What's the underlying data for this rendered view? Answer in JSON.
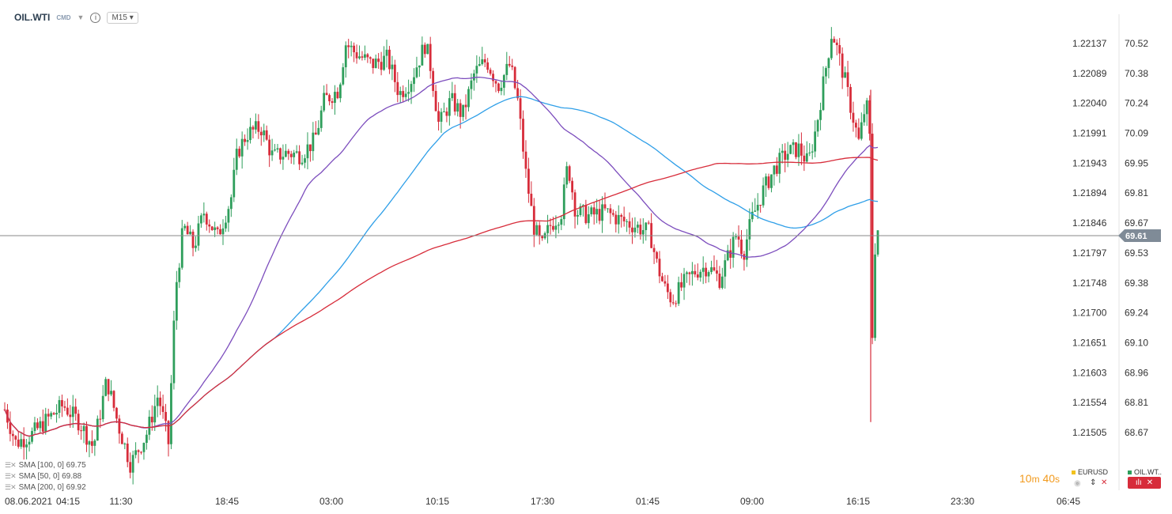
{
  "header": {
    "symbol": "OIL.WTI",
    "sub": "CMD",
    "timeframe": "M15"
  },
  "right_axis_labels": [
    "1.22137",
    "1.22089",
    "1.22040",
    "1.21991",
    "1.21943",
    "1.21894",
    "1.21846",
    "1.21797",
    "1.21748",
    "1.21700",
    "1.21651",
    "1.21603",
    "1.21554",
    "1.21505"
  ],
  "price_axis_labels": [
    "70.52",
    "70.38",
    "70.24",
    "70.09",
    "69.95",
    "69.81",
    "69.67",
    "69.53",
    "69.38",
    "69.24",
    "69.10",
    "68.96",
    "68.81",
    "68.67"
  ],
  "current_price": "69.61",
  "legend": [
    {
      "label": "SMA [100, 0] 69.75"
    },
    {
      "label": "SMA [50, 0] 69.88"
    },
    {
      "label": "SMA [200, 0] 69.92"
    }
  ],
  "bottom_panel": {
    "timer_min": "10",
    "timer_m": "m",
    "timer_sec": "40",
    "timer_s": "s",
    "eurusd": "EURUSD",
    "oil": "OIL.WT.."
  },
  "colors": {
    "up": "#2e9e5b",
    "down": "#d72c3a",
    "sma100": "#2f9fe8",
    "sma50": "#7c4dbd",
    "sma200": "#d72c3a",
    "price_line": "#888888",
    "price_tag": "#7f8b97"
  },
  "chart_data": {
    "type": "candlestick",
    "x_ticks": [
      "08.06.2021",
      "04:15",
      "11:30",
      "18:45",
      "03:00",
      "10:15",
      "17:30",
      "01:45",
      "09:00",
      "16:15",
      "23:30",
      "06:45"
    ],
    "y_range": [
      68.52,
      70.69
    ],
    "current_price": 69.61,
    "bar_interval": "M15",
    "key_values": [
      {
        "time": "08.06.2021 start",
        "close": 68.78
      },
      {
        "time": "~11:30",
        "close": 68.71
      },
      {
        "time": "~18:45",
        "close": 69.9
      },
      {
        "time": "~03:00",
        "close": 70.5
      },
      {
        "time": "~10:15",
        "close": 70.2
      },
      {
        "time": "~17:30",
        "close": 69.55
      },
      {
        "time": "~01:45",
        "close": 69.33
      },
      {
        "time": "~09:00",
        "close": 69.75
      },
      {
        "time": "~15:00",
        "close": 70.58
      },
      {
        "time": "~16:30 drop low",
        "close": 68.67
      },
      {
        "time": "last",
        "close": 69.61
      }
    ],
    "series": [
      {
        "name": "SMA [100, 0] 69.75",
        "type": "line"
      },
      {
        "name": "SMA [50, 0] 69.88",
        "type": "line"
      },
      {
        "name": "SMA [200, 0] 69.92",
        "type": "line"
      }
    ]
  }
}
